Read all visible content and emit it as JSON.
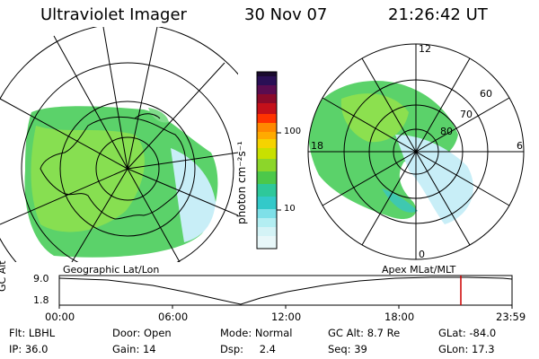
{
  "header": {
    "instrument": "Ultraviolet Imager",
    "date": "30 Nov 07",
    "time": "21:26:42 UT"
  },
  "colorbar": {
    "unit_label": "photon cm⁻²s⁻¹",
    "ticks": [
      "100",
      "10"
    ]
  },
  "geo_map": {
    "label": "Geographic Lat/Lon"
  },
  "apex_map": {
    "label": "Apex MLat/MLT",
    "mlt_labels": {
      "top": "12",
      "right": "6",
      "bottom": "0",
      "left": "18"
    },
    "lat_labels": [
      "60",
      "70",
      "80"
    ]
  },
  "altitude_plot": {
    "ylabel": "GC Alt",
    "y_ticks": [
      "9.0",
      "1.8"
    ],
    "x_ticks": [
      "00:00",
      "06:00",
      "12:00",
      "18:00",
      "23:59"
    ],
    "marker_color": "#cc0000"
  },
  "info": {
    "row1": [
      {
        "label": "Flt:",
        "value": "LBHL"
      },
      {
        "label": "Door:",
        "value": "Open"
      },
      {
        "label": "Mode:",
        "value": "Normal"
      },
      {
        "label": "GC Alt:",
        "value": "8.7 Re"
      },
      {
        "label": "GLat:",
        "value": "-84.0"
      }
    ],
    "row2": [
      {
        "label": "IP:",
        "value": "36.0"
      },
      {
        "label": "Gain:",
        "value": "14"
      },
      {
        "label": "Dsp:",
        "value": "2.4"
      },
      {
        "label": "Seq:",
        "value": "39"
      },
      {
        "label": "GLon:",
        "value": "17.3"
      }
    ]
  }
}
